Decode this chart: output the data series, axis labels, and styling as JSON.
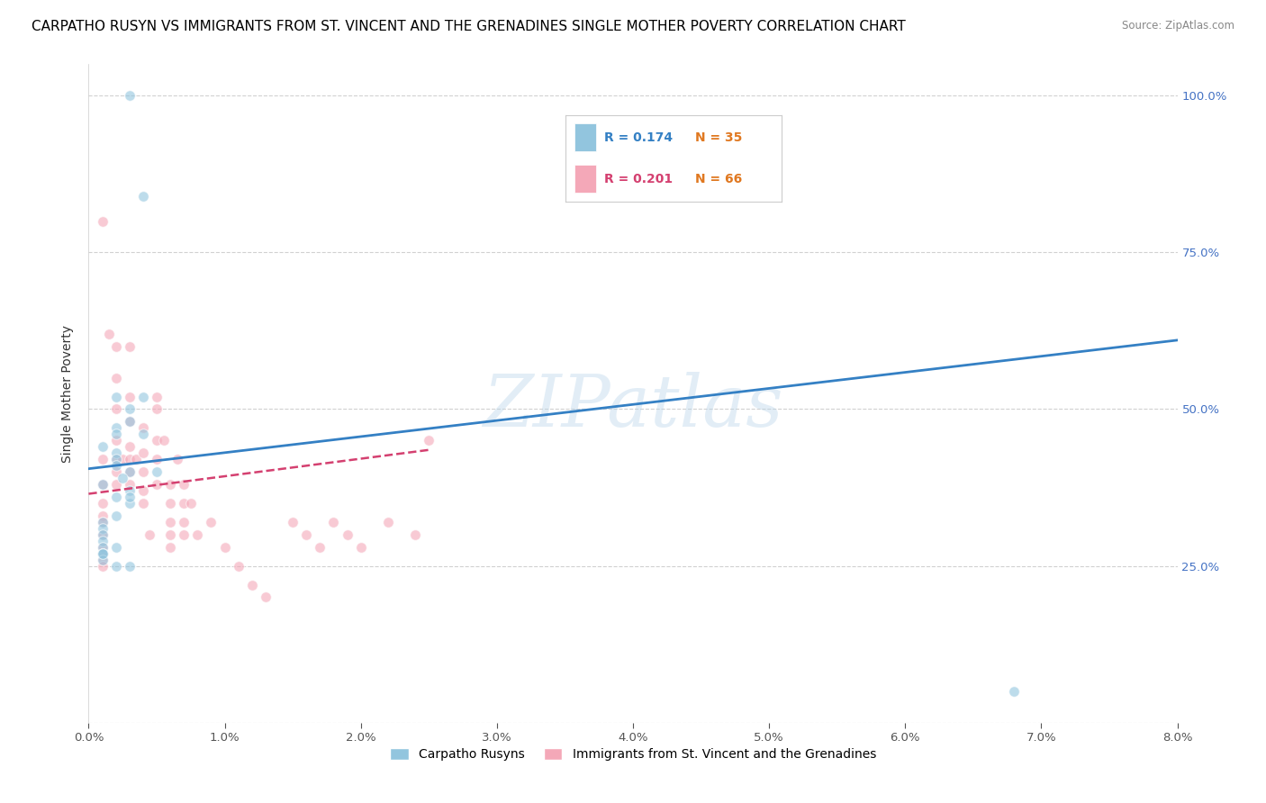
{
  "title": "CARPATHO RUSYN VS IMMIGRANTS FROM ST. VINCENT AND THE GRENADINES SINGLE MOTHER POVERTY CORRELATION CHART",
  "source": "Source: ZipAtlas.com",
  "ylabel": "Single Mother Poverty",
  "legend_blue_R": "0.174",
  "legend_blue_N": "35",
  "legend_pink_R": "0.201",
  "legend_pink_N": "66",
  "legend_blue_label": "Carpatho Rusyns",
  "legend_pink_label": "Immigrants from St. Vincent and the Grenadines",
  "watermark": "ZIPatlas",
  "blue_color": "#92c5de",
  "pink_color": "#f4a8b8",
  "blue_line_color": "#3480c4",
  "pink_line_color": "#d44070",
  "blue_N_color": "#e07820",
  "pink_N_color": "#e07820",
  "xlim": [
    0.0,
    0.08
  ],
  "ylim": [
    0.0,
    1.05
  ],
  "blue_scatter_x": [
    0.003,
    0.004,
    0.002,
    0.003,
    0.003,
    0.002,
    0.002,
    0.001,
    0.002,
    0.002,
    0.002,
    0.003,
    0.001,
    0.002,
    0.003,
    0.002,
    0.001,
    0.001,
    0.001,
    0.001,
    0.001,
    0.001,
    0.001,
    0.001,
    0.002,
    0.003,
    0.003,
    0.003,
    0.004,
    0.004,
    0.005,
    0.0025,
    0.002,
    0.001,
    0.068
  ],
  "blue_scatter_y": [
    1.0,
    0.84,
    0.52,
    0.5,
    0.48,
    0.47,
    0.46,
    0.44,
    0.43,
    0.42,
    0.41,
    0.4,
    0.38,
    0.36,
    0.35,
    0.33,
    0.32,
    0.31,
    0.3,
    0.29,
    0.28,
    0.27,
    0.27,
    0.26,
    0.25,
    0.25,
    0.37,
    0.36,
    0.46,
    0.52,
    0.4,
    0.39,
    0.28,
    0.27,
    0.05
  ],
  "pink_scatter_x": [
    0.001,
    0.001,
    0.001,
    0.001,
    0.001,
    0.001,
    0.001,
    0.001,
    0.001,
    0.001,
    0.001,
    0.0015,
    0.002,
    0.002,
    0.002,
    0.002,
    0.002,
    0.002,
    0.002,
    0.0025,
    0.003,
    0.003,
    0.003,
    0.003,
    0.003,
    0.003,
    0.003,
    0.0035,
    0.004,
    0.004,
    0.004,
    0.004,
    0.004,
    0.0045,
    0.005,
    0.005,
    0.005,
    0.005,
    0.005,
    0.0055,
    0.006,
    0.006,
    0.006,
    0.006,
    0.006,
    0.0065,
    0.007,
    0.007,
    0.007,
    0.007,
    0.0075,
    0.008,
    0.009,
    0.01,
    0.011,
    0.012,
    0.013,
    0.015,
    0.016,
    0.017,
    0.018,
    0.019,
    0.02,
    0.022,
    0.024,
    0.025
  ],
  "pink_scatter_y": [
    0.8,
    0.42,
    0.38,
    0.35,
    0.33,
    0.32,
    0.3,
    0.28,
    0.27,
    0.26,
    0.25,
    0.62,
    0.6,
    0.55,
    0.5,
    0.45,
    0.42,
    0.4,
    0.38,
    0.42,
    0.6,
    0.52,
    0.48,
    0.44,
    0.42,
    0.4,
    0.38,
    0.42,
    0.47,
    0.43,
    0.4,
    0.37,
    0.35,
    0.3,
    0.52,
    0.5,
    0.45,
    0.42,
    0.38,
    0.45,
    0.38,
    0.35,
    0.32,
    0.3,
    0.28,
    0.42,
    0.38,
    0.35,
    0.32,
    0.3,
    0.35,
    0.3,
    0.32,
    0.28,
    0.25,
    0.22,
    0.2,
    0.32,
    0.3,
    0.28,
    0.32,
    0.3,
    0.28,
    0.32,
    0.3,
    0.45
  ],
  "blue_trendline_x": [
    0.0,
    0.08
  ],
  "blue_trendline_y": [
    0.405,
    0.61
  ],
  "pink_trendline_x": [
    0.0,
    0.025
  ],
  "pink_trendline_y": [
    0.365,
    0.435
  ],
  "xticks": [
    0.0,
    0.01,
    0.02,
    0.03,
    0.04,
    0.05,
    0.06,
    0.07,
    0.08
  ],
  "xticklabels": [
    "0.0%",
    "1.0%",
    "2.0%",
    "3.0%",
    "4.0%",
    "5.0%",
    "6.0%",
    "7.0%",
    "8.0%"
  ],
  "yticks": [
    0.0,
    0.25,
    0.5,
    0.75,
    1.0
  ],
  "yticklabels_right": [
    "",
    "25.0%",
    "50.0%",
    "75.0%",
    "100.0%"
  ],
  "background_color": "#ffffff",
  "grid_color": "#cccccc",
  "title_fontsize": 11,
  "axis_fontsize": 10,
  "tick_fontsize": 9.5,
  "scatter_size": 70,
  "scatter_alpha": 0.6,
  "scatter_edgewidth": 0.8
}
